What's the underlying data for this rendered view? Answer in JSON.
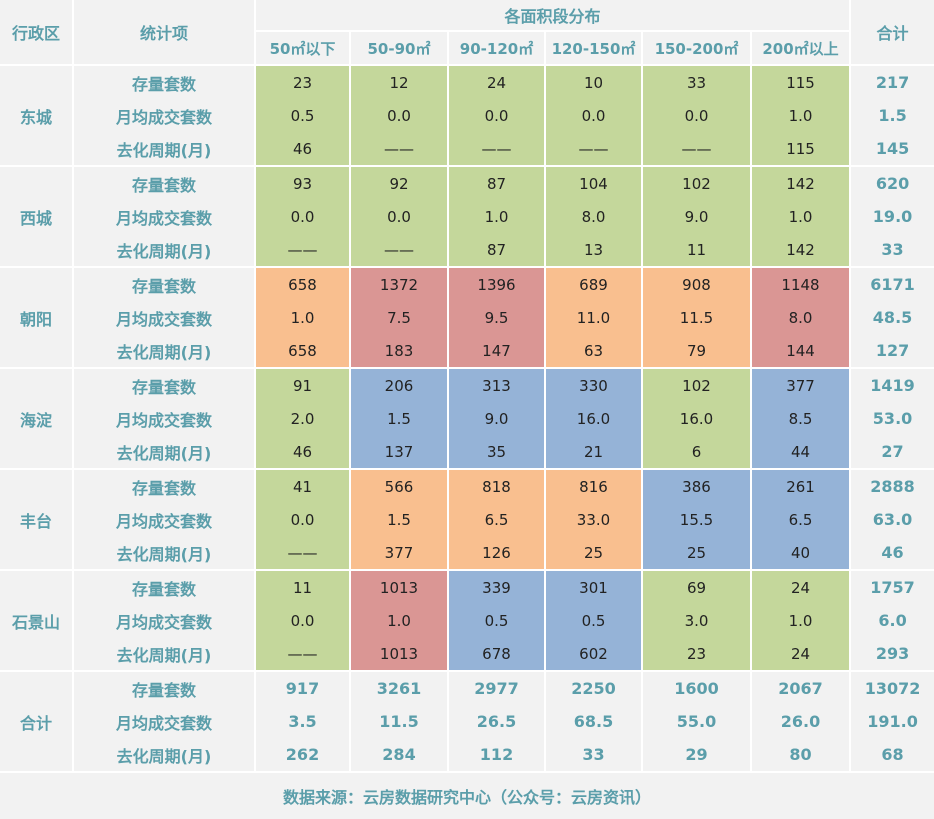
{
  "header": {
    "district": "行政区",
    "item": "统计项",
    "group": "各面积段分布",
    "total": "合计",
    "sizes": [
      "50㎡以下",
      "50-90㎡",
      "90-120㎡",
      "120-150㎡",
      "150-200㎡",
      "200㎡以上"
    ]
  },
  "metrics": [
    "存量套数",
    "月均成交套数",
    "去化周期(月)"
  ],
  "districts": [
    {
      "name": "东城",
      "rows": [
        [
          "23",
          "12",
          "24",
          "10",
          "33",
          "115",
          "217"
        ],
        [
          "0.5",
          "0.0",
          "0.0",
          "0.0",
          "0.0",
          "1.0",
          "1.5"
        ],
        [
          "46",
          "——",
          "——",
          "——",
          "——",
          "115",
          "145"
        ]
      ]
    },
    {
      "name": "西城",
      "rows": [
        [
          "93",
          "92",
          "87",
          "104",
          "102",
          "142",
          "620"
        ],
        [
          "0.0",
          "0.0",
          "1.0",
          "8.0",
          "9.0",
          "1.0",
          "19.0"
        ],
        [
          "——",
          "——",
          "87",
          "13",
          "11",
          "142",
          "33"
        ]
      ]
    },
    {
      "name": "朝阳",
      "rows": [
        [
          "658",
          "1372",
          "1396",
          "689",
          "908",
          "1148",
          "6171"
        ],
        [
          "1.0",
          "7.5",
          "9.5",
          "11.0",
          "11.5",
          "8.0",
          "48.5"
        ],
        [
          "658",
          "183",
          "147",
          "63",
          "79",
          "144",
          "127"
        ]
      ]
    },
    {
      "name": "海淀",
      "rows": [
        [
          "91",
          "206",
          "313",
          "330",
          "102",
          "377",
          "1419"
        ],
        [
          "2.0",
          "1.5",
          "9.0",
          "16.0",
          "16.0",
          "8.5",
          "53.0"
        ],
        [
          "46",
          "137",
          "35",
          "21",
          "6",
          "44",
          "27"
        ]
      ]
    },
    {
      "name": "丰台",
      "rows": [
        [
          "41",
          "566",
          "818",
          "816",
          "386",
          "261",
          "2888"
        ],
        [
          "0.0",
          "1.5",
          "6.5",
          "33.0",
          "15.5",
          "6.5",
          "63.0"
        ],
        [
          "——",
          "377",
          "126",
          "25",
          "25",
          "40",
          "46"
        ]
      ]
    },
    {
      "name": "石景山",
      "rows": [
        [
          "11",
          "1013",
          "339",
          "301",
          "69",
          "24",
          "1757"
        ],
        [
          "0.0",
          "1.0",
          "0.5",
          "0.5",
          "3.0",
          "1.0",
          "6.0"
        ],
        [
          "——",
          "1013",
          "678",
          "602",
          "23",
          "24",
          "293"
        ]
      ]
    },
    {
      "name": "合计",
      "rows": [
        [
          "917",
          "3261",
          "2977",
          "2250",
          "1600",
          "2067",
          "13072"
        ],
        [
          "3.5",
          "11.5",
          "26.5",
          "68.5",
          "55.0",
          "26.0",
          "191.0"
        ],
        [
          "262",
          "284",
          "112",
          "33",
          "29",
          "80",
          "68"
        ]
      ]
    }
  ],
  "colors": {
    "green": "#c4d79b",
    "orange": "#f9bf8f",
    "red": "#da9694",
    "blue": "#95b3d7",
    "text_accent": "#5b9eaa"
  },
  "cell_colors": [
    [
      "g",
      "g",
      "g",
      "g",
      "g",
      "g"
    ],
    [
      "g",
      "g",
      "g",
      "g",
      "g",
      "g"
    ],
    [
      "o",
      "r",
      "r",
      "o",
      "o",
      "r"
    ],
    [
      "g",
      "b",
      "b",
      "b",
      "g",
      "b"
    ],
    [
      "g",
      "o",
      "o",
      "o",
      "b",
      "b"
    ],
    [
      "g",
      "r",
      "b",
      "b",
      "g",
      "g"
    ],
    [
      "n",
      "n",
      "n",
      "n",
      "n",
      "n"
    ]
  ],
  "footer": "数据来源：云房数据研究中心（公众号：云房资讯）"
}
